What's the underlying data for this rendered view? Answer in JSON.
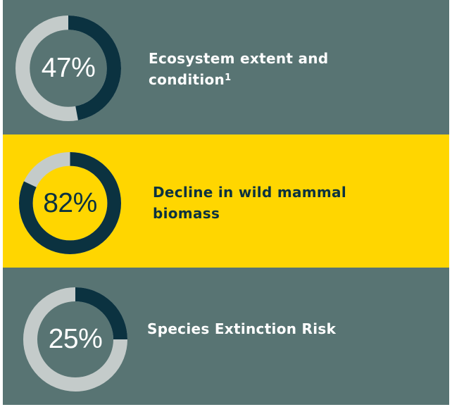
{
  "colors": {
    "panel_grey": "#587473",
    "panel_yellow": "#FFD600",
    "ring_dark": "#0B3240",
    "ring_light": "#C4CBCA",
    "text_white": "#FFFFFF",
    "text_dark": "#0B3240"
  },
  "chart_data": {
    "type": "donut",
    "items": [
      {
        "percent": 47,
        "value_label": "47%",
        "label": "Ecosystem extent and condition",
        "footnote": "1"
      },
      {
        "percent": 82,
        "value_label": "82%",
        "label": "Decline in wild mammal biomass",
        "footnote": ""
      },
      {
        "percent": 25,
        "value_label": "25%",
        "label": "Species Extinction Risk",
        "footnote": ""
      }
    ]
  }
}
